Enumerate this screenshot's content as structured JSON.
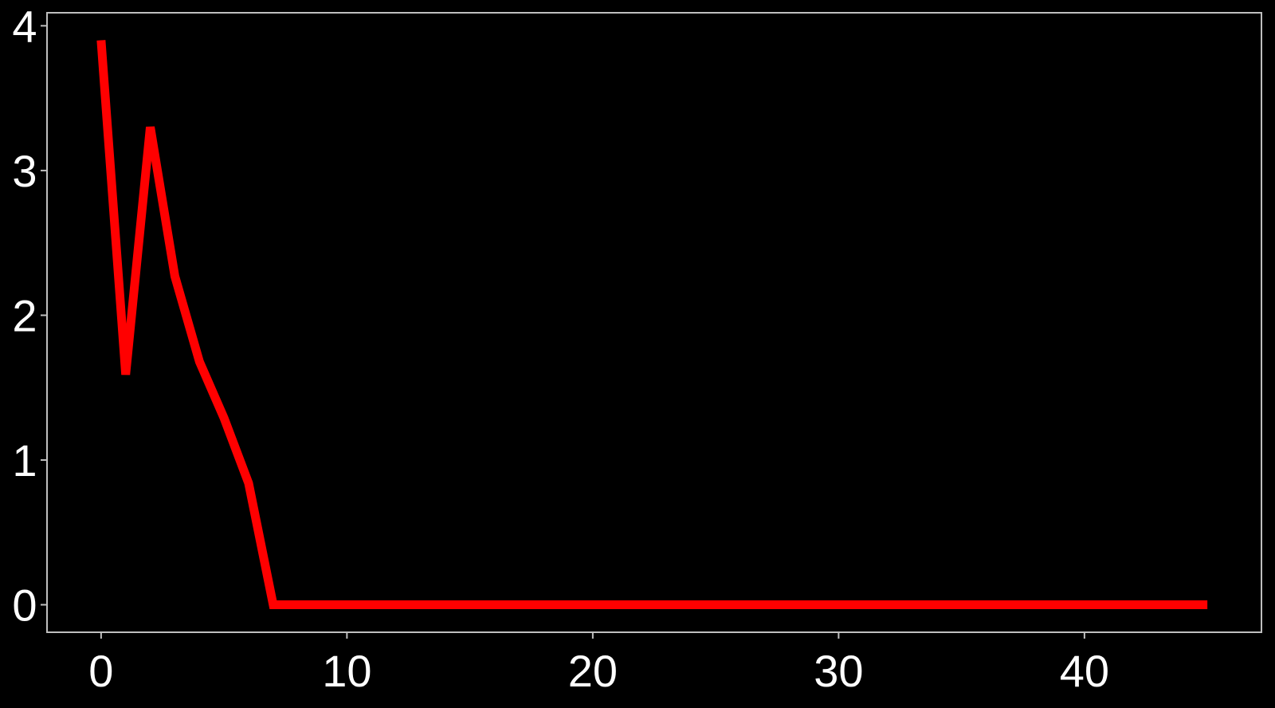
{
  "chart_data": {
    "type": "line",
    "title": "",
    "xlabel": "",
    "ylabel": "",
    "xlim": [
      -2.2,
      47.2
    ],
    "ylim": [
      -0.19,
      4.09
    ],
    "xticks": [
      0,
      10,
      20,
      30,
      40
    ],
    "yticks": [
      0,
      1,
      2,
      3,
      4
    ],
    "grid": false,
    "legend": "none",
    "background_color": "#000000",
    "axis_color": "#bfbfbf",
    "tick_label_color": "#ffffff",
    "series": [
      {
        "color": "#ff0000",
        "x": [
          0,
          1,
          2,
          3,
          4,
          5,
          6,
          7,
          8,
          9,
          10,
          11,
          12,
          13,
          14,
          15,
          16,
          17,
          18,
          19,
          20,
          21,
          22,
          23,
          24,
          25,
          26,
          27,
          28,
          29,
          30,
          31,
          32,
          33,
          34,
          35,
          36,
          37,
          38,
          39,
          40,
          41,
          42,
          43,
          44,
          45
        ],
        "y": [
          3.9,
          1.59,
          3.3,
          2.27,
          1.68,
          1.29,
          0.84,
          0,
          0,
          0,
          0,
          0,
          0,
          0,
          0,
          0,
          0,
          0,
          0,
          0,
          0,
          0,
          0,
          0,
          0,
          0,
          0,
          0,
          0,
          0,
          0,
          0,
          0,
          0,
          0,
          0,
          0,
          0,
          0,
          0,
          0,
          0,
          0,
          0,
          0,
          0
        ]
      }
    ]
  }
}
